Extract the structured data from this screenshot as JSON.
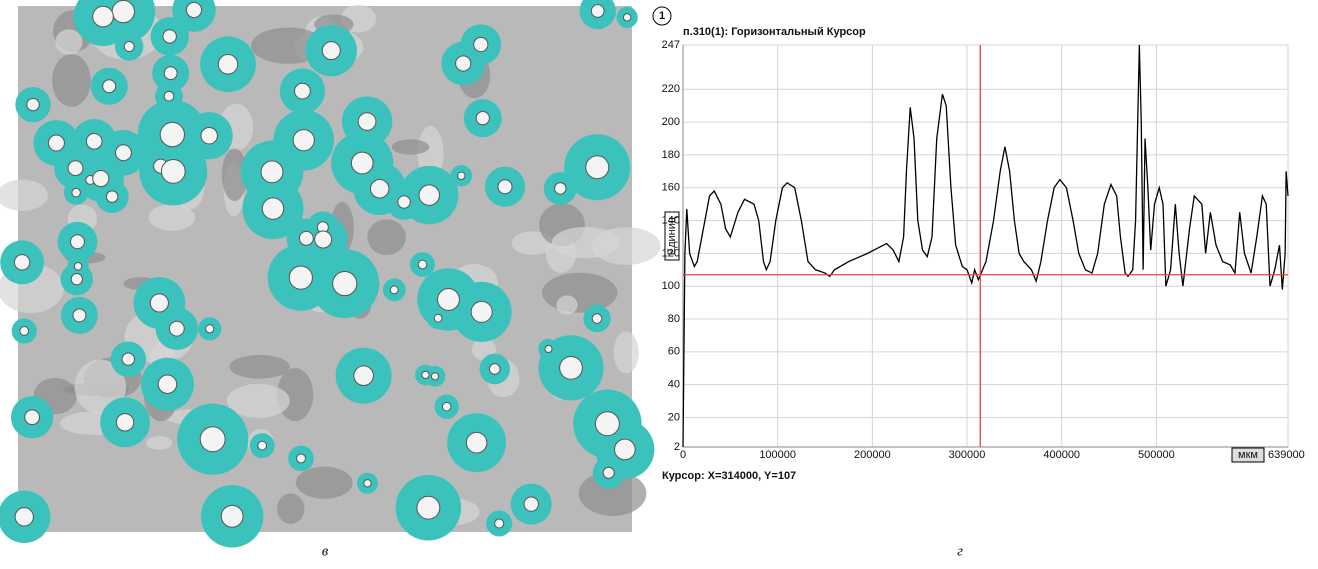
{
  "panel_labels": [
    "в",
    "г"
  ],
  "chart_data": {
    "type": "line",
    "marker_label": "1",
    "title": "п.310(1): Горизонтальный Курсор",
    "ylabel": "Единиц",
    "xlabel": "мкм",
    "cursor_text": "Курсор: X=314000, Y=107",
    "cursor": {
      "x": 314000,
      "y": 107,
      "color": "#e8453c"
    },
    "xlim": [
      0,
      639000
    ],
    "ylim": [
      2,
      247
    ],
    "xticks": [
      0,
      100000,
      200000,
      300000,
      400000,
      500000,
      639000
    ],
    "yticks": [
      2,
      20,
      40,
      60,
      80,
      100,
      120,
      140,
      160,
      180,
      200,
      220,
      247
    ],
    "grid": true,
    "x": [
      0,
      2000,
      4000,
      7000,
      12000,
      15000,
      28000,
      33000,
      40000,
      45000,
      50000,
      58000,
      65000,
      75000,
      80000,
      85000,
      88000,
      92000,
      98000,
      105000,
      110000,
      118000,
      125000,
      132000,
      140000,
      150000,
      155000,
      160000,
      175000,
      195000,
      205000,
      215000,
      222000,
      228000,
      233000,
      236000,
      240000,
      244000,
      248000,
      253000,
      258000,
      263000,
      268000,
      274000,
      278000,
      283000,
      288000,
      295000,
      300000,
      305000,
      308000,
      312000,
      320000,
      328000,
      335000,
      340000,
      345000,
      350000,
      355000,
      360000,
      368000,
      373000,
      378000,
      385000,
      392000,
      398000,
      405000,
      412000,
      418000,
      425000,
      432000,
      438000,
      445000,
      452000,
      458000,
      462000,
      467000,
      470000,
      475000,
      478000,
      482000,
      484000,
      486000,
      488000,
      491000,
      494000,
      498000,
      503000,
      507000,
      510000,
      515000,
      520000,
      524000,
      528000,
      535000,
      540000,
      548000,
      552000,
      557000,
      563000,
      570000,
      578000,
      583000,
      588000,
      593000,
      600000,
      606000,
      612000,
      616000,
      620000,
      625000,
      630000,
      633000,
      636000,
      637000,
      639000
    ],
    "series": [
      {
        "color": "#000000",
        "values": [
          2,
          120,
          147,
          120,
          112,
          115,
          155,
          158,
          150,
          135,
          130,
          145,
          153,
          150,
          140,
          115,
          110,
          115,
          140,
          160,
          163,
          160,
          140,
          115,
          110,
          108,
          106,
          110,
          115,
          120,
          123,
          126,
          122,
          115,
          130,
          170,
          209,
          190,
          140,
          122,
          118,
          130,
          190,
          217,
          210,
          160,
          125,
          112,
          110,
          102,
          110,
          104,
          115,
          140,
          170,
          185,
          170,
          140,
          120,
          115,
          110,
          103,
          115,
          140,
          160,
          165,
          160,
          140,
          120,
          110,
          108,
          120,
          150,
          162,
          155,
          130,
          108,
          106,
          110,
          140,
          247,
          200,
          110,
          190,
          160,
          122,
          150,
          160,
          150,
          100,
          110,
          150,
          120,
          100,
          135,
          155,
          150,
          120,
          145,
          125,
          115,
          113,
          108,
          145,
          120,
          108,
          130,
          155,
          150,
          100,
          110,
          125,
          98,
          120,
          170,
          155
        ]
      }
    ]
  }
}
